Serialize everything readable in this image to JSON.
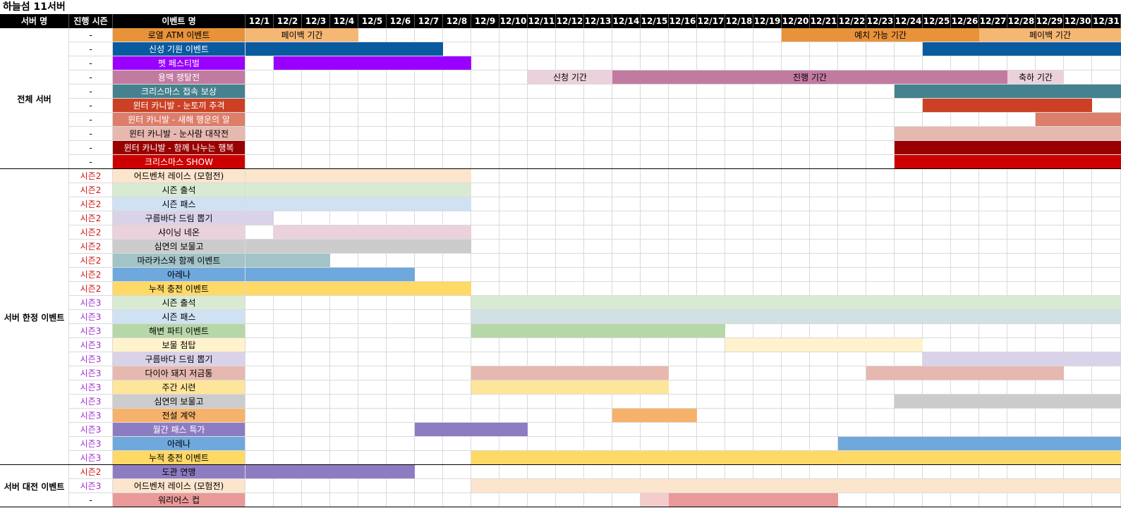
{
  "sheet_title": "하늘섬 11서버",
  "headers": {
    "server": "서버 명",
    "season": "진행 시즌",
    "event": "이벤트 명",
    "dates": [
      "12/1",
      "12/2",
      "12/3",
      "12/4",
      "12/5",
      "12/6",
      "12/7",
      "12/8",
      "12/9",
      "12/10",
      "12/11",
      "12/12",
      "12/13",
      "12/14",
      "12/15",
      "12/16",
      "12/17",
      "12/18",
      "12/19",
      "12/20",
      "12/21",
      "12/22",
      "12/23",
      "12/24",
      "12/25",
      "12/26",
      "12/27",
      "12/28",
      "12/29",
      "12/30",
      "12/31"
    ]
  },
  "season_colors": {
    "시즌2": "#d01010",
    "시즌3": "#9a2bd0",
    "-": "#000000"
  },
  "groups": [
    {
      "name": "전체 서버",
      "rows": [
        {
          "season": "-",
          "name": "로열 ATM 이벤트",
          "color": "#e8923a",
          "bars": [
            {
              "start": 1,
              "end": 4,
              "color": "#f5b774",
              "label": "페이백 기간"
            },
            {
              "start": 20,
              "end": 26,
              "color": "#e8923a",
              "label": "예치 가능 기간"
            },
            {
              "start": 27,
              "end": 31,
              "color": "#f5b774",
              "label": "페이백 기간"
            }
          ]
        },
        {
          "season": "-",
          "name": "신성 기원 이벤트",
          "color": "#0a5aa0",
          "textColor": "#ffffff",
          "bars": [
            {
              "start": 1,
              "end": 7,
              "color": "#0a5aa0"
            },
            {
              "start": 25,
              "end": 31,
              "color": "#0a5aa0"
            }
          ]
        },
        {
          "season": "-",
          "name": "펫 페스티벌",
          "color": "#9900ff",
          "textColor": "#ffffff",
          "bars": [
            {
              "start": 2,
              "end": 8,
              "color": "#9900ff"
            }
          ]
        },
        {
          "season": "-",
          "name": "용맥 쟁탈전",
          "color": "#c27ba0",
          "textColor": "#ffffff",
          "bars": [
            {
              "start": 11,
              "end": 13,
              "color": "#ead1dc",
              "label": "신청 기간"
            },
            {
              "start": 14,
              "end": 27,
              "color": "#c27ba0",
              "label": "진행 기간"
            },
            {
              "start": 28,
              "end": 29,
              "color": "#ead1dc",
              "label": "축하 기간"
            }
          ]
        },
        {
          "season": "-",
          "name": "크리스마스 접속 보상",
          "color": "#45818e",
          "textColor": "#ffffff",
          "bars": [
            {
              "start": 24,
              "end": 31,
              "color": "#45818e"
            }
          ]
        },
        {
          "season": "-",
          "name": "윈터 카니발 - 눈토끼 추격",
          "color": "#cc4125",
          "textColor": "#ffffff",
          "bars": [
            {
              "start": 25,
              "end": 30,
              "color": "#cc4125"
            }
          ]
        },
        {
          "season": "-",
          "name": "윈터 카니발 - 새해 행운의 알",
          "color": "#dd7e6b",
          "textColor": "#ffffff",
          "bars": [
            {
              "start": 29,
              "end": 31,
              "color": "#dd7e6b"
            }
          ]
        },
        {
          "season": "-",
          "name": "윈터 카니발 - 눈사람 대작전",
          "color": "#e6b8af",
          "bars": [
            {
              "start": 24,
              "end": 31,
              "color": "#e6b8af"
            }
          ]
        },
        {
          "season": "-",
          "name": "윈터 카니발 - 함께 나누는 행복",
          "color": "#990000",
          "textColor": "#ffffff",
          "bars": [
            {
              "start": 24,
              "end": 31,
              "color": "#990000"
            }
          ]
        },
        {
          "season": "-",
          "name": "크리스마스 SHOW",
          "color": "#cc0000",
          "textColor": "#ffffff",
          "bars": [
            {
              "start": 24,
              "end": 31,
              "color": "#cc0000"
            }
          ]
        }
      ]
    },
    {
      "name": "서버 한정 이벤트",
      "rows": [
        {
          "season": "시즌2",
          "name": "어드벤처 레이스 (모험전)",
          "color": "#fce5cd",
          "bars": [
            {
              "start": 1,
              "end": 8,
              "color": "#fce5cd"
            }
          ]
        },
        {
          "season": "시즌2",
          "name": "시즌 출석",
          "color": "#d9ead3",
          "bars": [
            {
              "start": 1,
              "end": 8,
              "color": "#d9ead3"
            }
          ]
        },
        {
          "season": "시즌2",
          "name": "시즌 패스",
          "color": "#cfe2f3",
          "bars": [
            {
              "start": 1,
              "end": 8,
              "color": "#cfe2f3"
            }
          ]
        },
        {
          "season": "시즌2",
          "name": "구름바다 드림 뽑기",
          "color": "#d9d2e9",
          "bars": [
            {
              "start": 1,
              "end": 1,
              "color": "#d9d2e9"
            }
          ]
        },
        {
          "season": "시즌2",
          "name": "샤이닝 네온",
          "color": "#ead1dc",
          "bars": [
            {
              "start": 2,
              "end": 8,
              "color": "#ead1dc"
            }
          ]
        },
        {
          "season": "시즌2",
          "name": "심연의 보물고",
          "color": "#cccccc",
          "bars": [
            {
              "start": 1,
              "end": 8,
              "color": "#cccccc"
            }
          ]
        },
        {
          "season": "시즌2",
          "name": "마라카스와 함께 이벤트",
          "color": "#a2c4c9",
          "bars": [
            {
              "start": 1,
              "end": 3,
              "color": "#a2c4c9"
            }
          ]
        },
        {
          "season": "시즌2",
          "name": "아레나",
          "color": "#6fa8dc",
          "bars": [
            {
              "start": 1,
              "end": 6,
              "color": "#6fa8dc"
            }
          ]
        },
        {
          "season": "시즌2",
          "name": "누적 충전 이벤트",
          "color": "#ffd966",
          "bars": [
            {
              "start": 1,
              "end": 8,
              "color": "#ffd966"
            }
          ]
        },
        {
          "season": "시즌3",
          "name": "시즌 출석",
          "color": "#d9ead3",
          "bars": [
            {
              "start": 9,
              "end": 31,
              "color": "#d9ead3"
            }
          ]
        },
        {
          "season": "시즌3",
          "name": "시즌 패스",
          "color": "#cfe2f3",
          "bars": [
            {
              "start": 9,
              "end": 31,
              "color": "#d0e0e3"
            }
          ]
        },
        {
          "season": "시즌3",
          "name": "해변 파티 이벤트",
          "color": "#b6d7a8",
          "bars": [
            {
              "start": 9,
              "end": 17,
              "color": "#b6d7a8"
            }
          ]
        },
        {
          "season": "시즌3",
          "name": "보물 첨탑",
          "color": "#fff2cc",
          "bars": [
            {
              "start": 18,
              "end": 24,
              "color": "#fff2cc"
            }
          ]
        },
        {
          "season": "시즌3",
          "name": "구름바다 드림 뽑기",
          "color": "#d9d2e9",
          "bars": [
            {
              "start": 25,
              "end": 31,
              "color": "#d9d2e9"
            }
          ]
        },
        {
          "season": "시즌3",
          "name": "다이아 돼지 저금통",
          "color": "#e6b8af",
          "bars": [
            {
              "start": 9,
              "end": 15,
              "color": "#e6b8af"
            },
            {
              "start": 23,
              "end": 29,
              "color": "#e6b8af"
            }
          ]
        },
        {
          "season": "시즌3",
          "name": "주간 시련",
          "color": "#ffe599",
          "bars": [
            {
              "start": 9,
              "end": 15,
              "color": "#ffe599"
            }
          ]
        },
        {
          "season": "시즌3",
          "name": "심연의 보물고",
          "color": "#cccccc",
          "bars": [
            {
              "start": 24,
              "end": 31,
              "color": "#cccccc"
            }
          ]
        },
        {
          "season": "시즌3",
          "name": "전설 계약",
          "color": "#f6b26b",
          "bars": [
            {
              "start": 14,
              "end": 16,
              "color": "#f6b26b"
            }
          ]
        },
        {
          "season": "시즌3",
          "name": "월간 패스 특가",
          "color": "#8e7cc3",
          "textColor": "#ffffff",
          "bars": [
            {
              "start": 7,
              "end": 10,
              "color": "#8e7cc3"
            }
          ]
        },
        {
          "season": "시즌3",
          "name": "아레나",
          "color": "#6fa8dc",
          "bars": [
            {
              "start": 22,
              "end": 31,
              "color": "#6fa8dc"
            }
          ]
        },
        {
          "season": "시즌3",
          "name": "누적 충전 이벤트",
          "color": "#ffd966",
          "bars": [
            {
              "start": 9,
              "end": 31,
              "color": "#ffd966"
            }
          ]
        }
      ]
    },
    {
      "name": "서버 대전 이벤트",
      "rows": [
        {
          "season": "시즌2",
          "name": "도관 연맹",
          "color": "#8e7cc3",
          "bars": [
            {
              "start": 1,
              "end": 6,
              "color": "#8e7cc3"
            }
          ]
        },
        {
          "season": "시즌3",
          "name": "어드벤처 레이스 (모험전)",
          "color": "#fce5cd",
          "bars": [
            {
              "start": 9,
              "end": 31,
              "color": "#fce5cd"
            }
          ]
        },
        {
          "season": "-",
          "name": "워리어스 컵",
          "color": "#ea9999",
          "bars": [
            {
              "start": 15,
              "end": 15,
              "color": "#f4cccc"
            },
            {
              "start": 16,
              "end": 21,
              "color": "#ea9999"
            }
          ]
        }
      ]
    }
  ]
}
